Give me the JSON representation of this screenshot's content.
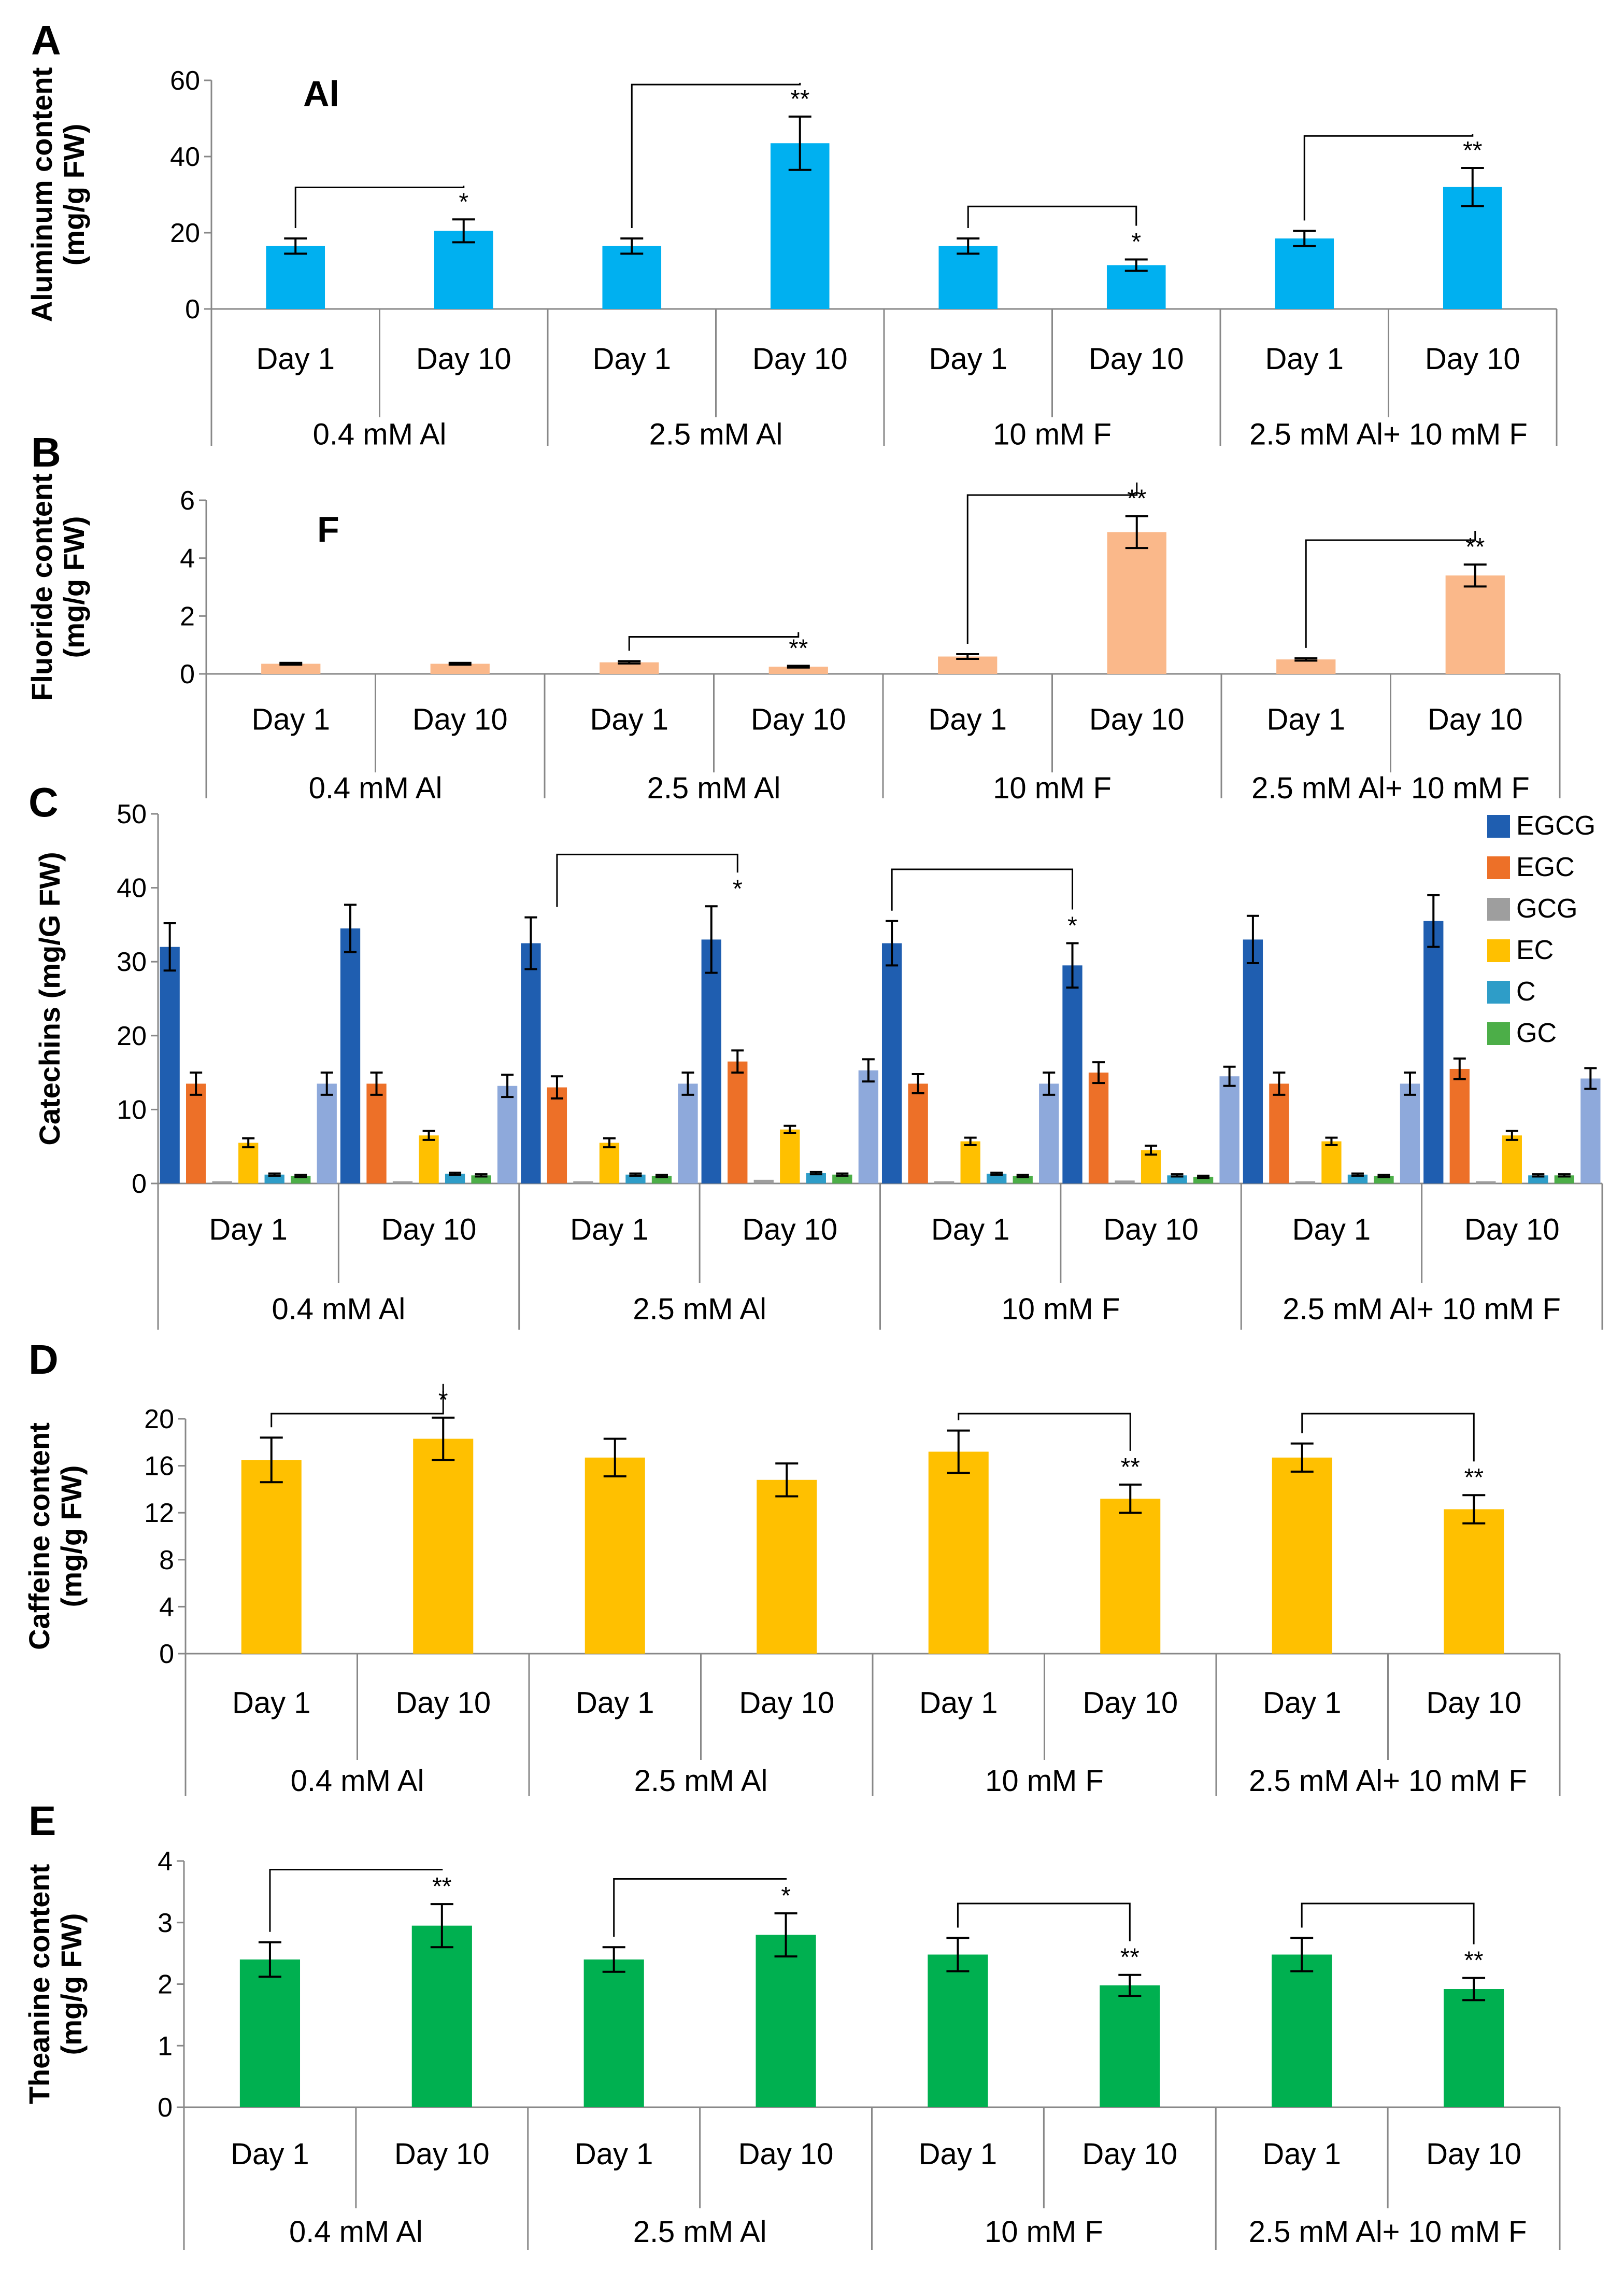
{
  "chart_data": [
    {
      "panel": "A",
      "type": "bar",
      "inset_label": "Al",
      "ylabel": [
        "Aluminum content",
        "(mg/g FW)"
      ],
      "ylim": [
        0,
        60
      ],
      "yticks": [
        0,
        20,
        40,
        60
      ],
      "categories": [
        "Day 1",
        "Day 10",
        "Day 1",
        "Day 10",
        "Day 1",
        "Day 10",
        "Day 1",
        "Day 10"
      ],
      "groups": [
        "0.4 mM Al",
        "2.5 mM Al",
        "10 mM F",
        "2.5 mM Al+ 10 mM F"
      ],
      "values": [
        16.5,
        20.5,
        16.5,
        43.5,
        16.5,
        11.5,
        18.5,
        32
      ],
      "errors": [
        2,
        3,
        2,
        7,
        2,
        1.5,
        2,
        5
      ],
      "color": "#00B0F0",
      "significance": [
        {
          "group": 0,
          "label": "*"
        },
        {
          "group": 1,
          "label": "**"
        },
        {
          "group": 2,
          "label": "*"
        },
        {
          "group": 3,
          "label": "**"
        }
      ]
    },
    {
      "panel": "B",
      "type": "bar",
      "inset_label": "F",
      "ylabel": [
        "Fluoride content",
        "(mg/g FW)"
      ],
      "ylim": [
        0,
        6
      ],
      "yticks": [
        0,
        2,
        4,
        6
      ],
      "categories": [
        "Day 1",
        "Day 10",
        "Day 1",
        "Day 10",
        "Day 1",
        "Day 10",
        "Day 1",
        "Day 10"
      ],
      "groups": [
        "0.4 mM Al",
        "2.5 mM Al",
        "10 mM F",
        "2.5 mM Al+ 10 mM F"
      ],
      "values": [
        0.35,
        0.35,
        0.4,
        0.25,
        0.6,
        4.9,
        0.5,
        3.4
      ],
      "errors": [
        0.03,
        0.03,
        0.04,
        0.03,
        0.08,
        0.55,
        0.04,
        0.38
      ],
      "color": "#FAB88A",
      "significance": [
        {
          "group": 1,
          "label": "**"
        },
        {
          "group": 2,
          "label": "**"
        },
        {
          "group": 3,
          "label": "**"
        }
      ]
    },
    {
      "panel": "C",
      "type": "bar",
      "ylabel": [
        "Catechins (mg/G FW)"
      ],
      "ylim": [
        0,
        50
      ],
      "yticks": [
        0,
        10,
        20,
        30,
        40,
        50
      ],
      "categories": [
        "Day 1",
        "Day 10",
        "Day 1",
        "Day 10",
        "Day 1",
        "Day 10",
        "Day 1",
        "Day 10"
      ],
      "groups": [
        "0.4 mM Al",
        "2.5 mM Al",
        "10 mM F",
        "2.5 mM Al+ 10 mM F"
      ],
      "series": [
        {
          "name": "EGCG",
          "color": "#1F5EB0",
          "values": [
            32,
            34.5,
            32.5,
            33,
            32.5,
            29.5,
            33,
            35.5
          ],
          "errors": [
            3.2,
            3.2,
            3.5,
            4.5,
            3,
            3,
            3.2,
            3.5
          ]
        },
        {
          "name": "EGC",
          "color": "#ED7028",
          "values": [
            13.5,
            13.5,
            13,
            16.5,
            13.5,
            15,
            13.5,
            15.5
          ],
          "errors": [
            1.5,
            1.5,
            1.5,
            1.5,
            1.3,
            1.4,
            1.5,
            1.4
          ]
        },
        {
          "name": "GCG",
          "color": "#9E9E9E",
          "values": [
            0.3,
            0.3,
            0.3,
            0.5,
            0.3,
            0.4,
            0.3,
            0.3
          ],
          "errors": [
            0,
            0,
            0,
            0,
            0,
            0,
            0,
            0
          ]
        },
        {
          "name": "EC",
          "color": "#FFC000",
          "values": [
            5.5,
            6.5,
            5.5,
            7.3,
            5.7,
            4.5,
            5.7,
            6.5
          ],
          "errors": [
            0.6,
            0.6,
            0.6,
            0.5,
            0.5,
            0.6,
            0.5,
            0.6
          ]
        },
        {
          "name": "C",
          "color": "#2E9DC8",
          "values": [
            1.2,
            1.3,
            1.2,
            1.4,
            1.3,
            1.1,
            1.2,
            1.1
          ],
          "errors": [
            0.15,
            0.15,
            0.15,
            0.15,
            0.15,
            0.15,
            0.15,
            0.15
          ]
        },
        {
          "name": "GC",
          "color": "#4CAE48",
          "values": [
            1,
            1.1,
            1,
            1.2,
            1,
            0.9,
            1,
            1.1
          ],
          "errors": [
            0.15,
            0.15,
            0.15,
            0.15,
            0.15,
            0.15,
            0.15,
            0.15
          ]
        },
        {
          "name": "",
          "color": "#8EA9DB",
          "values": [
            13.5,
            13.2,
            13.5,
            15.3,
            13.5,
            14.5,
            13.5,
            14.2
          ],
          "errors": [
            1.5,
            1.5,
            1.5,
            1.5,
            1.5,
            1.3,
            1.5,
            1.4
          ]
        }
      ],
      "significance": [
        {
          "group": 1,
          "label": "*"
        },
        {
          "group": 2,
          "label": "*"
        }
      ]
    },
    {
      "panel": "D",
      "type": "bar",
      "ylabel": [
        "Caffeine content",
        "(mg/g FW)"
      ],
      "ylim": [
        0,
        20
      ],
      "yticks": [
        0,
        4,
        8,
        12,
        16,
        20
      ],
      "categories": [
        "Day 1",
        "Day 10",
        "Day 1",
        "Day 10",
        "Day 1",
        "Day 10",
        "Day 1",
        "Day 10"
      ],
      "groups": [
        "0.4 mM Al",
        "2.5 mM Al",
        "10 mM F",
        "2.5 mM Al+ 10 mM F"
      ],
      "values": [
        16.5,
        18.3,
        16.7,
        14.8,
        17.2,
        13.2,
        16.7,
        12.3
      ],
      "errors": [
        1.9,
        1.8,
        1.6,
        1.4,
        1.8,
        1.2,
        1.2,
        1.2
      ],
      "color": "#FFC000",
      "significance": [
        {
          "group": 0,
          "label": "*"
        },
        {
          "group": 2,
          "label": "**"
        },
        {
          "group": 3,
          "label": "**"
        }
      ]
    },
    {
      "panel": "E",
      "type": "bar",
      "ylabel": [
        "Theanine content",
        "(mg/g FW)"
      ],
      "ylim": [
        0,
        4
      ],
      "yticks": [
        0,
        1,
        2,
        3,
        4
      ],
      "categories": [
        "Day 1",
        "Day 10",
        "Day 1",
        "Day 10",
        "Day 1",
        "Day 10",
        "Day 1",
        "Day 10"
      ],
      "groups": [
        "0.4 mM Al",
        "2.5 mM Al",
        "10 mM F",
        "2.5 mM Al+ 10 mM F"
      ],
      "values": [
        2.4,
        2.95,
        2.4,
        2.8,
        2.48,
        1.98,
        2.48,
        1.92
      ],
      "errors": [
        0.28,
        0.35,
        0.2,
        0.35,
        0.27,
        0.17,
        0.27,
        0.18
      ],
      "color": "#00B050",
      "significance": [
        {
          "group": 0,
          "label": "**"
        },
        {
          "group": 1,
          "label": "*"
        },
        {
          "group": 2,
          "label": "**"
        },
        {
          "group": 3,
          "label": "**"
        }
      ]
    }
  ]
}
